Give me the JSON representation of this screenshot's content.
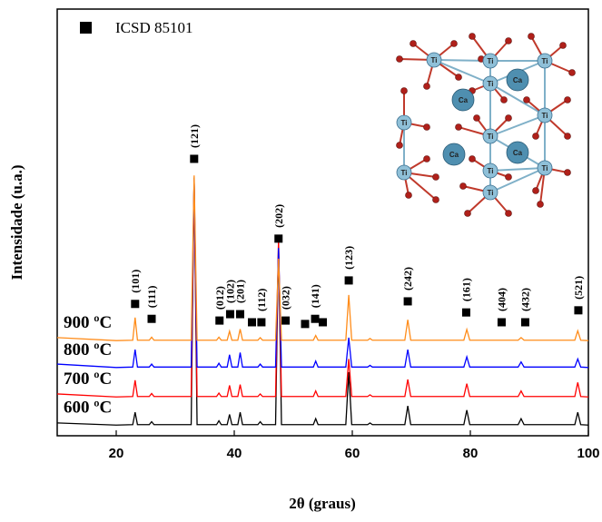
{
  "chart_data": {
    "type": "line",
    "x_label": "2θ (graus)",
    "y_label": "Intensidade (u.a.)",
    "xlim": [
      10,
      100
    ],
    "ylim": [
      0,
      100
    ],
    "xticks": [
      20,
      40,
      60,
      80,
      100
    ],
    "x": [
      10,
      20,
      22.8,
      23.2,
      23.6,
      25.6,
      26,
      26.4,
      32.7,
      33.2,
      33.7,
      37,
      37.4,
      37.8,
      38.8,
      39.2,
      39.6,
      40.6,
      41,
      41.4,
      44,
      44.4,
      44.8,
      47,
      47.5,
      48,
      53.4,
      53.8,
      54.2,
      58.9,
      59.4,
      59.9,
      62.6,
      63,
      63.4,
      68.9,
      69.4,
      69.9,
      78.9,
      79.4,
      79.9,
      88.1,
      88.6,
      89.1,
      97.7,
      98.2,
      98.7,
      100
    ],
    "series": [
      {
        "name": "900 ºC",
        "color": "#ff8c1a",
        "values": [
          23,
          22.3,
          22.4,
          27.7,
          22.4,
          22.4,
          23.1,
          22.4,
          22.4,
          61,
          22.4,
          22.4,
          23.1,
          22.4,
          22.4,
          24.5,
          22.4,
          22.4,
          25,
          22.4,
          22.4,
          23,
          22.4,
          22.4,
          41.5,
          22.4,
          22.4,
          23.5,
          22.4,
          22.4,
          33,
          22.4,
          22.4,
          22.8,
          22.4,
          22.4,
          27.2,
          22.4,
          22.4,
          24.9,
          22.4,
          22.4,
          23,
          22.4,
          22.4,
          24.6,
          22.4,
          22.3
        ]
      },
      {
        "name": "800 ºC",
        "color": "#0000ff",
        "values": [
          16.8,
          16,
          16.1,
          20.2,
          16.1,
          16.1,
          16.8,
          16.1,
          16.1,
          60,
          16.1,
          16.1,
          17,
          16.1,
          16.1,
          19,
          16.1,
          16.1,
          19.5,
          16.1,
          16.1,
          16.8,
          16.1,
          16.1,
          44,
          16.1,
          16.1,
          17.5,
          16.1,
          16.1,
          23,
          16.1,
          16.1,
          16.5,
          16.1,
          16.1,
          20.2,
          16.1,
          16.1,
          18.5,
          16.1,
          16.1,
          17.3,
          16.1,
          16.1,
          18,
          16.1,
          16
        ]
      },
      {
        "name": "700 ºC",
        "color": "#ff0000",
        "values": [
          9.8,
          9.1,
          9.2,
          13,
          9.2,
          9.2,
          9.9,
          9.2,
          9.2,
          60,
          9.2,
          9.2,
          10,
          9.2,
          9.2,
          11.8,
          9.2,
          9.2,
          12,
          9.2,
          9.2,
          9.8,
          9.2,
          9.2,
          46,
          9.2,
          9.2,
          10.5,
          9.2,
          9.2,
          18,
          9.2,
          9.2,
          9.6,
          9.2,
          9.2,
          13.2,
          9.2,
          9.2,
          12.2,
          9.2,
          9.2,
          10.5,
          9.2,
          9.2,
          12.5,
          9.2,
          9.1
        ]
      },
      {
        "name": "600 ºC",
        "color": "#000000",
        "values": [
          3,
          2.5,
          2.6,
          5.5,
          2.6,
          2.6,
          3.3,
          2.6,
          2.6,
          60.5,
          2.6,
          2.6,
          3.5,
          2.6,
          2.6,
          5,
          2.6,
          2.6,
          5.5,
          2.6,
          2.6,
          3.3,
          2.6,
          2.6,
          45.7,
          2.6,
          2.6,
          4,
          2.6,
          2.6,
          14.9,
          2.6,
          2.6,
          3,
          2.6,
          2.6,
          7,
          2.6,
          2.6,
          6,
          2.6,
          2.6,
          4,
          2.6,
          2.6,
          5.5,
          2.6,
          2.5
        ]
      }
    ],
    "reference": {
      "name": "ICSD 85101",
      "color": "#000000",
      "x": [
        23.2,
        26,
        33.2,
        37.5,
        39.3,
        41,
        43,
        44.6,
        47.5,
        48.7,
        52,
        53.7,
        55,
        59.4,
        69.4,
        79.3,
        85.3,
        89.3,
        98.3
      ],
      "values": [
        30.9,
        27.4,
        64.9,
        27,
        28.5,
        28.5,
        26.6,
        26.6,
        46.2,
        27,
        26.2,
        27.4,
        26.6,
        36.4,
        31.5,
        28.9,
        26.6,
        26.6,
        29.4
      ],
      "labels": [
        "(101)",
        "(111)",
        "(121)",
        "(012)",
        "(102)",
        "(201)",
        null,
        "(112)",
        "(202)",
        "(032)",
        null,
        "(141)",
        null,
        "(123)",
        "(242)",
        "(161)",
        "(404)",
        "(432)",
        "(521)"
      ]
    }
  },
  "inset": {
    "atoms": [
      "Ti",
      "Ti",
      "Ti",
      "Ti",
      "Ti",
      "Ti",
      "Ti",
      "Ti",
      "Ti",
      "Ti",
      "Ti",
      "Ca",
      "Ca",
      "Ca",
      "Ca"
    ]
  }
}
